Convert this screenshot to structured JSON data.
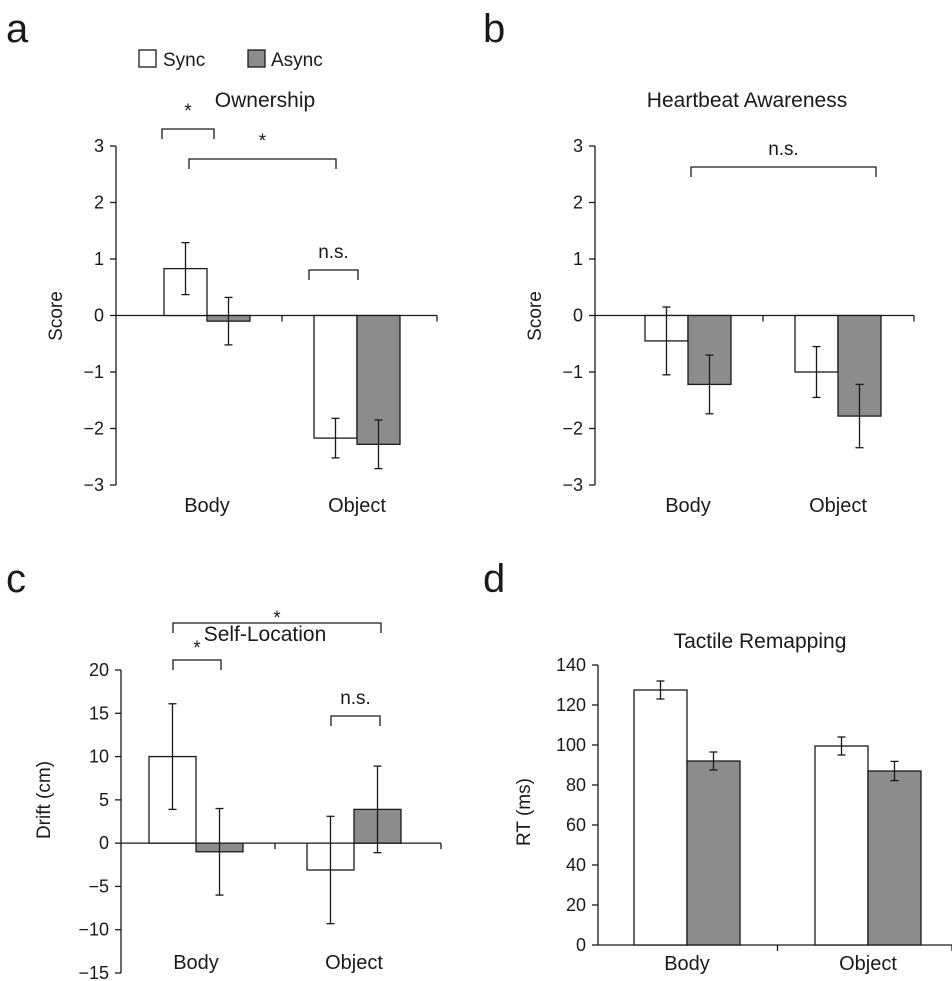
{
  "legend": {
    "sync_label": "Sync",
    "async_label": "Async"
  },
  "series_colors": {
    "Sync": "#ffffff",
    "Async": "#8c8c8c"
  },
  "chart_data": [
    {
      "panel": "a",
      "type": "bar",
      "title": "Ownership",
      "ylabel": "Score",
      "categories": [
        "Body",
        "Object"
      ],
      "ylim": [
        -3,
        3
      ],
      "yticks": [
        3,
        2,
        1,
        0,
        -1,
        -2,
        -3
      ],
      "ytick_labels": [
        "3",
        "2",
        "1",
        "0",
        "−1",
        "−2",
        "−3"
      ],
      "series": [
        {
          "name": "Sync",
          "values": [
            0.83,
            -2.17
          ],
          "errors": [
            0.46,
            0.35
          ]
        },
        {
          "name": "Async",
          "values": [
            -0.1,
            -2.28
          ],
          "errors": [
            0.42,
            0.43
          ]
        }
      ],
      "significance": [
        {
          "from": [
            0,
            0
          ],
          "to": [
            0,
            1
          ],
          "label": "*"
        },
        {
          "from": [
            0,
            0
          ],
          "to": [
            1,
            1
          ],
          "label": "*"
        },
        {
          "from": [
            1,
            0
          ],
          "to": [
            1,
            1
          ],
          "label": "n.s."
        }
      ]
    },
    {
      "panel": "b",
      "type": "bar",
      "title": "Heartbeat Awareness",
      "ylabel": "Score",
      "categories": [
        "Body",
        "Object"
      ],
      "ylim": [
        -3,
        3
      ],
      "yticks": [
        3,
        2,
        1,
        0,
        -1,
        -2,
        -3
      ],
      "ytick_labels": [
        "3",
        "2",
        "1",
        "0",
        "−1",
        "−2",
        "−3"
      ],
      "series": [
        {
          "name": "Sync",
          "values": [
            -0.45,
            -1.0
          ],
          "errors": [
            0.6,
            0.45
          ]
        },
        {
          "name": "Async",
          "values": [
            -1.22,
            -1.78
          ],
          "errors": [
            0.52,
            0.56
          ]
        }
      ],
      "significance": [
        {
          "from": [
            0,
            0
          ],
          "to": [
            1,
            1
          ],
          "label": "n.s."
        }
      ]
    },
    {
      "panel": "c",
      "type": "bar",
      "title": "Self-Location",
      "ylabel": "Drift (cm)",
      "categories": [
        "Body",
        "Object"
      ],
      "ylim": [
        -15,
        20
      ],
      "yticks": [
        20,
        15,
        10,
        5,
        0,
        -5,
        -10,
        -15
      ],
      "ytick_labels": [
        "20",
        "15",
        "10",
        "5",
        "0",
        "−5",
        "−10",
        "−15"
      ],
      "series": [
        {
          "name": "Sync",
          "values": [
            10.0,
            -3.1
          ],
          "errors": [
            6.1,
            6.2
          ]
        },
        {
          "name": "Async",
          "values": [
            -1.0,
            3.9
          ],
          "errors": [
            5.0,
            5.0
          ]
        }
      ],
      "significance": [
        {
          "from": [
            0,
            0
          ],
          "to": [
            1,
            1
          ],
          "label": "*"
        },
        {
          "from": [
            0,
            0
          ],
          "to": [
            0,
            1
          ],
          "label": "*"
        },
        {
          "from": [
            1,
            0
          ],
          "to": [
            1,
            1
          ],
          "label": "n.s."
        }
      ]
    },
    {
      "panel": "d",
      "type": "bar",
      "title": "Tactile Remapping",
      "ylabel": "RT (ms)",
      "categories": [
        "Body",
        "Object"
      ],
      "ylim": [
        0,
        140
      ],
      "yticks": [
        140,
        120,
        100,
        80,
        60,
        40,
        20,
        0
      ],
      "ytick_labels": [
        "140",
        "120",
        "100",
        "80",
        "60",
        "40",
        "20",
        "0"
      ],
      "series": [
        {
          "name": "Sync",
          "values": [
            127.5,
            99.5
          ],
          "errors": [
            4.5,
            4.5
          ]
        },
        {
          "name": "Async",
          "values": [
            92.0,
            87.0
          ],
          "errors": [
            4.5,
            4.8
          ]
        }
      ],
      "significance": []
    }
  ]
}
